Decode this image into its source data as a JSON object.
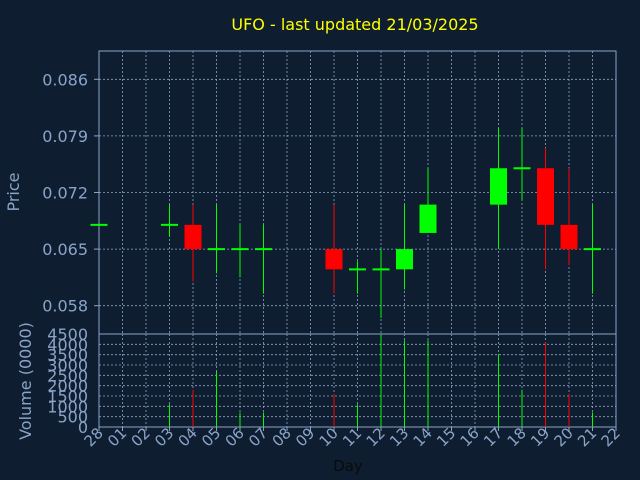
{
  "chart_data": [
    {
      "type": "candlestick",
      "title": "UFO - last updated 21/03/2025",
      "ylabel": "Price",
      "ylim": [
        0.0545,
        0.0895
      ],
      "y_ticks": [
        "0.086",
        "0.079",
        "0.072",
        "0.065",
        "0.058"
      ],
      "y_tick_values": [
        0.086,
        0.079,
        0.072,
        0.065,
        0.058
      ],
      "grid": true,
      "colors": {
        "up": "#00ff00",
        "down": "#ff0000",
        "flat": "#00ff00"
      },
      "candles": [
        {
          "x": "28",
          "open": 0.068,
          "close": 0.068,
          "high": 0.068,
          "low": 0.068
        },
        {
          "x": "03",
          "open": 0.068,
          "close": 0.068,
          "high": 0.0705,
          "low": 0.0665
        },
        {
          "x": "04",
          "open": 0.068,
          "close": 0.065,
          "high": 0.0705,
          "low": 0.061
        },
        {
          "x": "05",
          "open": 0.065,
          "close": 0.065,
          "high": 0.0705,
          "low": 0.062
        },
        {
          "x": "06",
          "open": 0.065,
          "close": 0.065,
          "high": 0.068,
          "low": 0.0615
        },
        {
          "x": "07",
          "open": 0.065,
          "close": 0.065,
          "high": 0.068,
          "low": 0.0595
        },
        {
          "x": "10",
          "open": 0.065,
          "close": 0.0625,
          "high": 0.0705,
          "low": 0.0595
        },
        {
          "x": "11",
          "open": 0.0625,
          "close": 0.0625,
          "high": 0.0635,
          "low": 0.0595
        },
        {
          "x": "12",
          "open": 0.0625,
          "close": 0.0625,
          "high": 0.065,
          "low": 0.0565
        },
        {
          "x": "13",
          "open": 0.0625,
          "close": 0.065,
          "high": 0.0705,
          "low": 0.06
        },
        {
          "x": "14",
          "open": 0.067,
          "close": 0.0705,
          "high": 0.075,
          "low": 0.067
        },
        {
          "x": "17",
          "open": 0.0705,
          "close": 0.075,
          "high": 0.08,
          "low": 0.065
        },
        {
          "x": "18",
          "open": 0.075,
          "close": 0.075,
          "high": 0.08,
          "low": 0.071
        },
        {
          "x": "19",
          "open": 0.075,
          "close": 0.068,
          "high": 0.0775,
          "low": 0.0625
        },
        {
          "x": "20",
          "open": 0.068,
          "close": 0.065,
          "high": 0.075,
          "low": 0.063
        },
        {
          "x": "21",
          "open": 0.065,
          "close": 0.065,
          "high": 0.0705,
          "low": 0.0595
        }
      ]
    },
    {
      "type": "bar",
      "xlabel": "Day",
      "ylabel": "Volume (0000)",
      "ylim": [
        0,
        4500
      ],
      "y_ticks": [
        "4500",
        "4000",
        "3500",
        "3000",
        "2500",
        "2000",
        "1500",
        "1000",
        "500",
        "0"
      ],
      "y_tick_values": [
        4500,
        4000,
        3500,
        3000,
        2500,
        2000,
        1500,
        1000,
        500,
        0
      ],
      "grid": true,
      "categories": [
        "28",
        "01",
        "02",
        "03",
        "04",
        "05",
        "06",
        "07",
        "08",
        "09",
        "10",
        "11",
        "12",
        "13",
        "14",
        "15",
        "16",
        "17",
        "18",
        "19",
        "20",
        "21",
        "22"
      ],
      "values": [
        {
          "x": "03",
          "volume": 1100,
          "color": "#00ff00"
        },
        {
          "x": "04",
          "volume": 1800,
          "color": "#ff0000"
        },
        {
          "x": "05",
          "volume": 2700,
          "color": "#00ff00"
        },
        {
          "x": "06",
          "volume": 700,
          "color": "#00ff00"
        },
        {
          "x": "07",
          "volume": 700,
          "color": "#00ff00"
        },
        {
          "x": "10",
          "volume": 1600,
          "color": "#ff0000"
        },
        {
          "x": "11",
          "volume": 1100,
          "color": "#00ff00"
        },
        {
          "x": "12",
          "volume": 4450,
          "color": "#00ff00"
        },
        {
          "x": "13",
          "volume": 4200,
          "color": "#00ff00"
        },
        {
          "x": "14",
          "volume": 4200,
          "color": "#00ff00"
        },
        {
          "x": "17",
          "volume": 3500,
          "color": "#00ff00"
        },
        {
          "x": "18",
          "volume": 1800,
          "color": "#00ff00"
        },
        {
          "x": "19",
          "volume": 4100,
          "color": "#ff0000"
        },
        {
          "x": "20",
          "volume": 1600,
          "color": "#ff0000"
        },
        {
          "x": "21",
          "volume": 700,
          "color": "#00ff00"
        }
      ]
    }
  ],
  "colors": {
    "background": "#0e1e30",
    "axis": "#8aa4c8",
    "grid": "#8aa4c8",
    "title": "#ffff00",
    "tick_text": "#8aa4c8",
    "day_label": "#ffffff"
  }
}
